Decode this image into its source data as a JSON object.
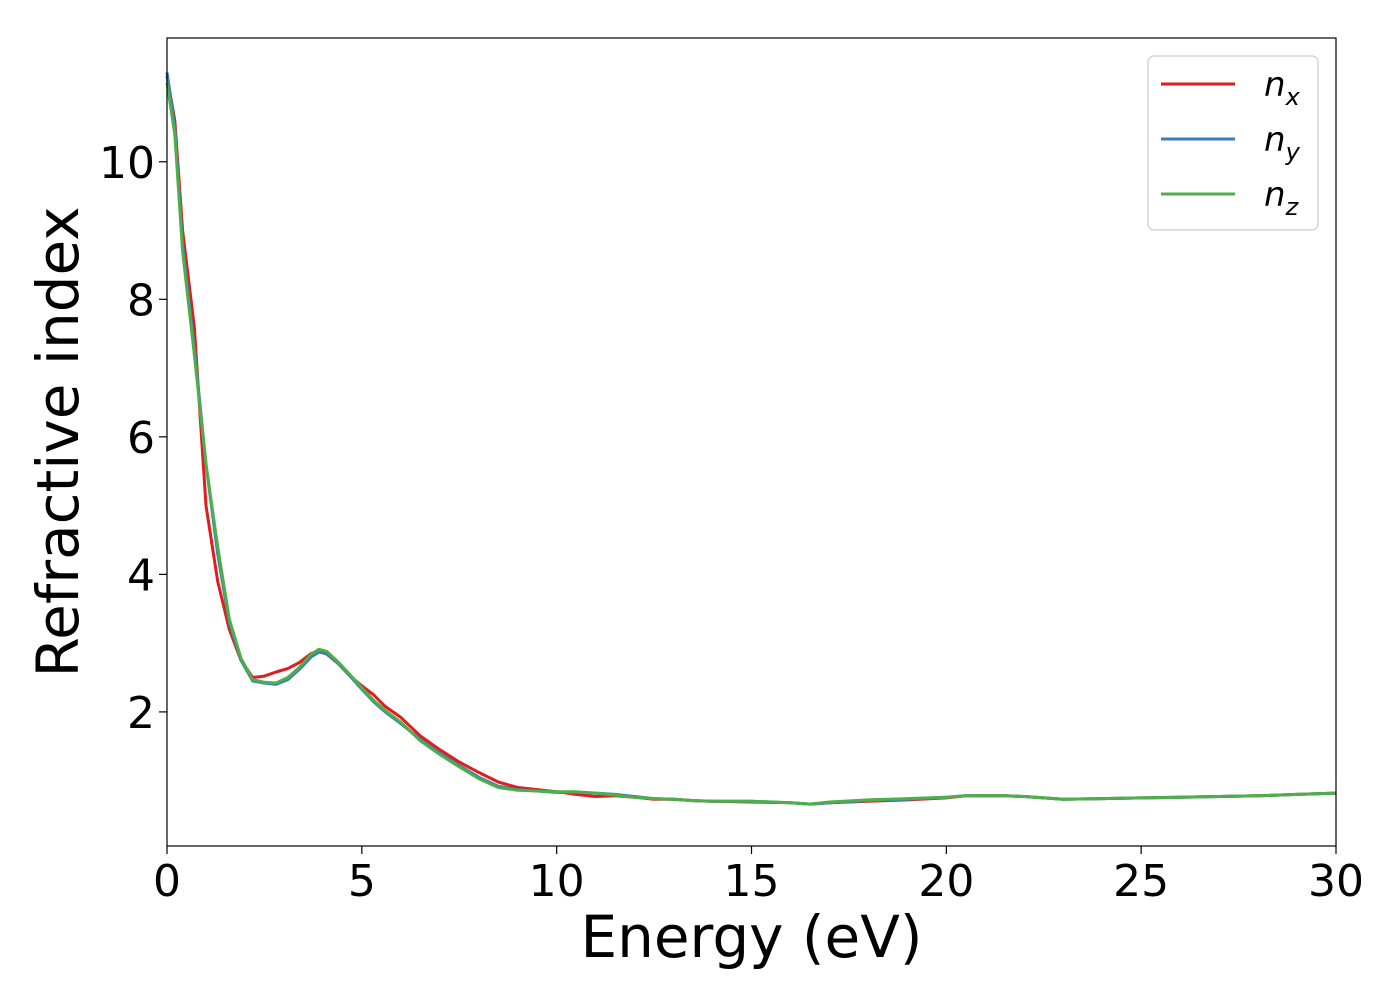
{
  "chart_data": {
    "type": "line",
    "title": "",
    "xlabel": "Energy (eV)",
    "ylabel": "Refractive index",
    "xlim": [
      0,
      30
    ],
    "ylim": [
      0.05,
      11.8
    ],
    "xticks": [
      0,
      5,
      10,
      15,
      20,
      25,
      30
    ],
    "yticks": [
      2,
      4,
      6,
      8,
      10
    ],
    "grid": false,
    "legend_position": "top-right",
    "series": [
      {
        "name": "n_x",
        "legend_base": "n",
        "legend_sub": "x",
        "color": "#e41a1c",
        "points": [
          [
            0.0,
            11.25
          ],
          [
            0.2,
            10.6
          ],
          [
            0.4,
            9.0
          ],
          [
            0.7,
            7.6
          ],
          [
            1.0,
            5.0
          ],
          [
            1.3,
            3.9
          ],
          [
            1.6,
            3.2
          ],
          [
            1.9,
            2.75
          ],
          [
            2.2,
            2.5
          ],
          [
            2.5,
            2.52
          ],
          [
            2.8,
            2.58
          ],
          [
            3.1,
            2.63
          ],
          [
            3.4,
            2.72
          ],
          [
            3.7,
            2.85
          ],
          [
            3.9,
            2.88
          ],
          [
            4.1,
            2.84
          ],
          [
            4.4,
            2.7
          ],
          [
            4.7,
            2.52
          ],
          [
            5.0,
            2.38
          ],
          [
            5.3,
            2.25
          ],
          [
            5.6,
            2.08
          ],
          [
            6.0,
            1.92
          ],
          [
            6.5,
            1.65
          ],
          [
            7.0,
            1.45
          ],
          [
            7.5,
            1.27
          ],
          [
            8.0,
            1.12
          ],
          [
            8.5,
            0.98
          ],
          [
            9.0,
            0.9
          ],
          [
            9.5,
            0.87
          ],
          [
            10.0,
            0.84
          ],
          [
            10.5,
            0.8
          ],
          [
            11.0,
            0.77
          ],
          [
            11.5,
            0.78
          ],
          [
            12.0,
            0.76
          ],
          [
            12.5,
            0.73
          ],
          [
            13.0,
            0.73
          ],
          [
            13.5,
            0.71
          ],
          [
            14.0,
            0.7
          ],
          [
            15.0,
            0.69
          ],
          [
            16.0,
            0.68
          ],
          [
            16.5,
            0.66
          ],
          [
            17.0,
            0.68
          ],
          [
            18.0,
            0.7
          ],
          [
            19.0,
            0.72
          ],
          [
            20.0,
            0.75
          ],
          [
            20.5,
            0.78
          ],
          [
            21.5,
            0.78
          ],
          [
            22.0,
            0.77
          ],
          [
            22.5,
            0.75
          ],
          [
            23.0,
            0.73
          ],
          [
            24.0,
            0.74
          ],
          [
            25.0,
            0.75
          ],
          [
            26.0,
            0.76
          ],
          [
            27.0,
            0.77
          ],
          [
            28.0,
            0.78
          ],
          [
            29.0,
            0.8
          ],
          [
            30.0,
            0.82
          ]
        ]
      },
      {
        "name": "n_y",
        "legend_base": "n",
        "legend_sub": "y",
        "color": "#377eb8",
        "points": [
          [
            0.0,
            11.3
          ],
          [
            0.2,
            10.5
          ],
          [
            0.4,
            8.8
          ],
          [
            0.7,
            7.3
          ],
          [
            1.0,
            5.6
          ],
          [
            1.3,
            4.3
          ],
          [
            1.6,
            3.3
          ],
          [
            1.9,
            2.75
          ],
          [
            2.2,
            2.45
          ],
          [
            2.5,
            2.42
          ],
          [
            2.8,
            2.4
          ],
          [
            3.1,
            2.47
          ],
          [
            3.4,
            2.62
          ],
          [
            3.7,
            2.8
          ],
          [
            3.9,
            2.87
          ],
          [
            4.1,
            2.85
          ],
          [
            4.4,
            2.7
          ],
          [
            4.7,
            2.52
          ],
          [
            5.0,
            2.33
          ],
          [
            5.3,
            2.15
          ],
          [
            5.6,
            2.0
          ],
          [
            6.0,
            1.83
          ],
          [
            6.5,
            1.6
          ],
          [
            7.0,
            1.4
          ],
          [
            7.5,
            1.22
          ],
          [
            8.0,
            1.05
          ],
          [
            8.5,
            0.92
          ],
          [
            9.0,
            0.87
          ],
          [
            9.5,
            0.85
          ],
          [
            10.0,
            0.83
          ],
          [
            10.5,
            0.83
          ],
          [
            11.0,
            0.82
          ],
          [
            11.5,
            0.8
          ],
          [
            12.0,
            0.77
          ],
          [
            12.5,
            0.74
          ],
          [
            13.0,
            0.73
          ],
          [
            13.5,
            0.71
          ],
          [
            14.0,
            0.7
          ],
          [
            15.0,
            0.7
          ],
          [
            16.0,
            0.68
          ],
          [
            16.5,
            0.66
          ],
          [
            17.0,
            0.68
          ],
          [
            18.0,
            0.71
          ],
          [
            19.0,
            0.73
          ],
          [
            20.0,
            0.76
          ],
          [
            20.5,
            0.78
          ],
          [
            21.5,
            0.78
          ],
          [
            22.0,
            0.77
          ],
          [
            22.5,
            0.75
          ],
          [
            23.0,
            0.73
          ],
          [
            24.0,
            0.74
          ],
          [
            25.0,
            0.75
          ],
          [
            26.0,
            0.76
          ],
          [
            27.0,
            0.77
          ],
          [
            28.0,
            0.78
          ],
          [
            29.0,
            0.8
          ],
          [
            30.0,
            0.82
          ]
        ]
      },
      {
        "name": "n_z",
        "legend_base": "n",
        "legend_sub": "z",
        "color": "#4daf4a",
        "points": [
          [
            0.0,
            11.15
          ],
          [
            0.2,
            10.4
          ],
          [
            0.4,
            8.7
          ],
          [
            0.7,
            7.2
          ],
          [
            1.0,
            5.6
          ],
          [
            1.3,
            4.4
          ],
          [
            1.6,
            3.35
          ],
          [
            1.9,
            2.78
          ],
          [
            2.2,
            2.47
          ],
          [
            2.5,
            2.43
          ],
          [
            2.8,
            2.42
          ],
          [
            3.1,
            2.5
          ],
          [
            3.4,
            2.65
          ],
          [
            3.7,
            2.84
          ],
          [
            3.9,
            2.91
          ],
          [
            4.1,
            2.88
          ],
          [
            4.4,
            2.72
          ],
          [
            4.7,
            2.54
          ],
          [
            5.0,
            2.35
          ],
          [
            5.3,
            2.17
          ],
          [
            5.6,
            2.02
          ],
          [
            6.0,
            1.85
          ],
          [
            6.5,
            1.58
          ],
          [
            7.0,
            1.38
          ],
          [
            7.5,
            1.2
          ],
          [
            8.0,
            1.03
          ],
          [
            8.5,
            0.9
          ],
          [
            9.0,
            0.86
          ],
          [
            9.5,
            0.85
          ],
          [
            10.0,
            0.84
          ],
          [
            10.5,
            0.84
          ],
          [
            11.0,
            0.82
          ],
          [
            11.5,
            0.79
          ],
          [
            12.0,
            0.76
          ],
          [
            12.5,
            0.74
          ],
          [
            13.0,
            0.73
          ],
          [
            13.5,
            0.71
          ],
          [
            14.0,
            0.7
          ],
          [
            15.0,
            0.7
          ],
          [
            16.0,
            0.68
          ],
          [
            16.5,
            0.66
          ],
          [
            17.0,
            0.69
          ],
          [
            18.0,
            0.72
          ],
          [
            19.0,
            0.74
          ],
          [
            20.0,
            0.76
          ],
          [
            20.5,
            0.78
          ],
          [
            21.5,
            0.78
          ],
          [
            22.0,
            0.77
          ],
          [
            22.5,
            0.75
          ],
          [
            23.0,
            0.73
          ],
          [
            24.0,
            0.74
          ],
          [
            25.0,
            0.75
          ],
          [
            26.0,
            0.76
          ],
          [
            27.0,
            0.77
          ],
          [
            28.0,
            0.78
          ],
          [
            29.0,
            0.8
          ],
          [
            30.0,
            0.82
          ]
        ]
      }
    ]
  }
}
